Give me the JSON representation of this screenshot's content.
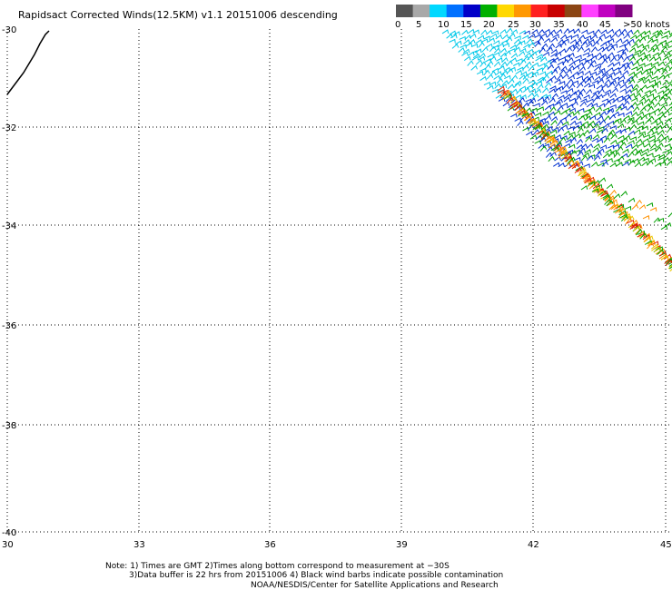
{
  "title": "Rapidsact Corrected Winds(12.5KM) v1.1 20151006 descending",
  "legend": {
    "labels": [
      "0",
      "5",
      "10",
      "15",
      "20",
      "25",
      "30",
      "35",
      "40",
      "45",
      ">50 knots"
    ],
    "colors": [
      "#555555",
      "#a8a8a8",
      "#00d8ff",
      "#0070ff",
      "#0000c8",
      "#00b000",
      "#ffd800",
      "#ff9800",
      "#ff2020",
      "#c80000",
      "#8b4513",
      "#ff40ff",
      "#c000c0",
      "#800080"
    ]
  },
  "axes": {
    "x_ticks": [
      "30",
      "33",
      "36",
      "39",
      "42",
      "45"
    ],
    "y_ticks": [
      "-30",
      "-32",
      "-34",
      "-36",
      "-38",
      "-40"
    ]
  },
  "notes": {
    "line1": "Note: 1) Times are GMT 2)Times along bottom correspond to measurement at −30S",
    "line2": "3)Data buffer is 22 hrs from 20151006 4) Black wind barbs indicate possible contamination",
    "line3": "NOAA/NESDIS/Center for Satellite Applications and Research"
  },
  "colors": {
    "cyan": "#00c8e8",
    "blue": "#0030d0",
    "green": "#00a000",
    "orange": "#ff9000",
    "red": "#e02000",
    "yellow": "#e8c800",
    "black": "#000000"
  }
}
